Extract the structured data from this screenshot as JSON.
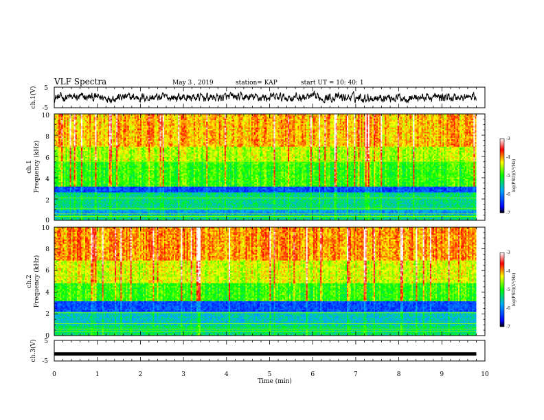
{
  "header": {
    "title": "VLF Spectra",
    "date": "May 3 , 2019",
    "station": "station= KAP",
    "start": "start UT = 10: 40: 1"
  },
  "chart_data": [
    {
      "type": "line",
      "panel": "ch1-waveform",
      "ylabel": "ch.1(V)",
      "yticks": [
        "5",
        "-5"
      ],
      "ylim": [
        -5,
        5
      ],
      "xlim": [
        0,
        10
      ],
      "series": [
        {
          "values": "dense noise waveform, roughly -3 to +3 V",
          "color": "#000000"
        }
      ]
    },
    {
      "type": "heatmap",
      "panel": "ch1-spectrogram",
      "ylabel": "ch.1",
      "ylabel2": "Frequency (kHz)",
      "ylim": [
        0,
        10
      ],
      "yticks": [
        "0",
        "2",
        "4",
        "6",
        "8",
        "10"
      ],
      "xlim": [
        0,
        9.8
      ],
      "colorbar": {
        "label": "log(PSD)(V²/Hz)",
        "ticks": [
          "-3",
          "-4",
          "-5",
          "-6",
          "-7"
        ],
        "range": [
          -7,
          -3
        ]
      },
      "bands_kHz": [
        {
          "from": 0,
          "to": 0.6,
          "level": -5.4
        },
        {
          "from": 0.6,
          "to": 1.0,
          "level": -5.9
        },
        {
          "from": 1.0,
          "to": 2.6,
          "level": -5.4
        },
        {
          "from": 2.6,
          "to": 3.2,
          "level": -6.3
        },
        {
          "from": 3.2,
          "to": 5.6,
          "level": -4.9
        },
        {
          "from": 5.6,
          "to": 7.0,
          "level": -4.5
        },
        {
          "from": 7.0,
          "to": 10.0,
          "level": -4.1
        }
      ]
    },
    {
      "type": "heatmap",
      "panel": "ch2-spectrogram",
      "ylabel": "ch.2",
      "ylabel2": "Frequency (kHz)",
      "ylim": [
        0,
        10
      ],
      "yticks": [
        "0",
        "2",
        "4",
        "6",
        "8",
        "10"
      ],
      "xlim": [
        0,
        9.8
      ],
      "colorbar": {
        "label": "log(PSD)(V²/Hz)",
        "ticks": [
          "-3",
          "-4",
          "-5",
          "-6",
          "-7"
        ],
        "range": [
          -7,
          -3
        ]
      },
      "bands_kHz": [
        {
          "from": 0,
          "to": 1.0,
          "level": -5.3
        },
        {
          "from": 1.0,
          "to": 2.2,
          "level": -5.6
        },
        {
          "from": 2.2,
          "to": 3.2,
          "level": -6.3
        },
        {
          "from": 3.2,
          "to": 4.8,
          "level": -4.9
        },
        {
          "from": 4.8,
          "to": 7.0,
          "level": -4.4
        },
        {
          "from": 7.0,
          "to": 10.0,
          "level": -4.0
        }
      ]
    },
    {
      "type": "line",
      "panel": "ch3-waveform",
      "ylabel": "ch.3(V)",
      "yticks": [
        "5",
        "-5"
      ],
      "ylim": [
        -5,
        5
      ],
      "xlim": [
        0,
        10
      ],
      "series": [
        {
          "values": "constant at about -1.6 V",
          "level": -1.6,
          "color": "#000000"
        }
      ]
    }
  ],
  "xaxis": {
    "label": "Time (min)",
    "ticks": [
      "0",
      "1",
      "2",
      "3",
      "4",
      "5",
      "6",
      "7",
      "8",
      "9",
      "10"
    ],
    "range": [
      0,
      10
    ]
  }
}
